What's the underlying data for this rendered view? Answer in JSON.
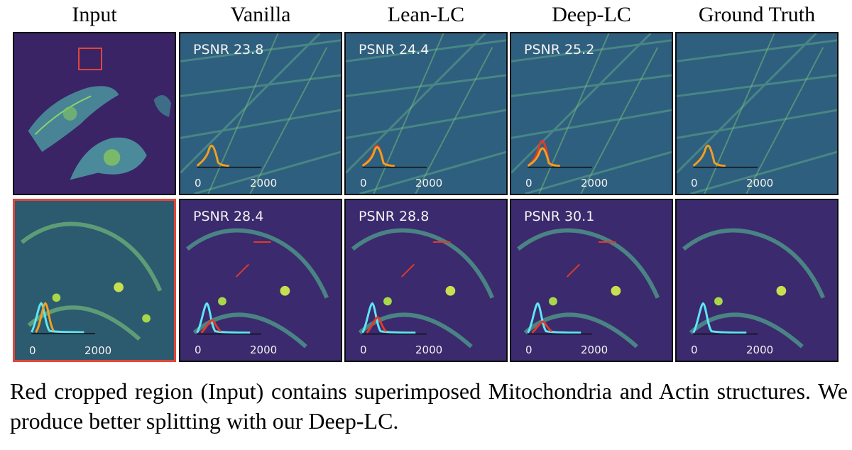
{
  "columns": [
    "Input",
    "Vanilla",
    "Lean-LC",
    "Deep-LC",
    "Ground Truth"
  ],
  "row1": [
    {
      "psnr": ""
    },
    {
      "psnr": "PSNR 23.8"
    },
    {
      "psnr": "PSNR 24.4"
    },
    {
      "psnr": "PSNR 25.2"
    },
    {
      "psnr": ""
    }
  ],
  "row2": [
    {
      "psnr": ""
    },
    {
      "psnr": "PSNR 28.4"
    },
    {
      "psnr": "PSNR 28.8"
    },
    {
      "psnr": "PSNR 30.1"
    },
    {
      "psnr": ""
    }
  ],
  "hist_axis": {
    "tick_start": "0",
    "tick_end": "2000"
  },
  "caption": "Red cropped region (Input) contains superimposed Mitochondria and Actin structures. We produce better splitting with our Deep-LC.",
  "colors": {
    "background_dark": "#3b2a6d",
    "actin": "#3f9a8a",
    "mito": "#9bd84a",
    "curve_orange": "#f0a020",
    "curve_red": "#e03a2a",
    "curve_cyan": "#5ee6f5",
    "highlight": "#e0463a"
  }
}
